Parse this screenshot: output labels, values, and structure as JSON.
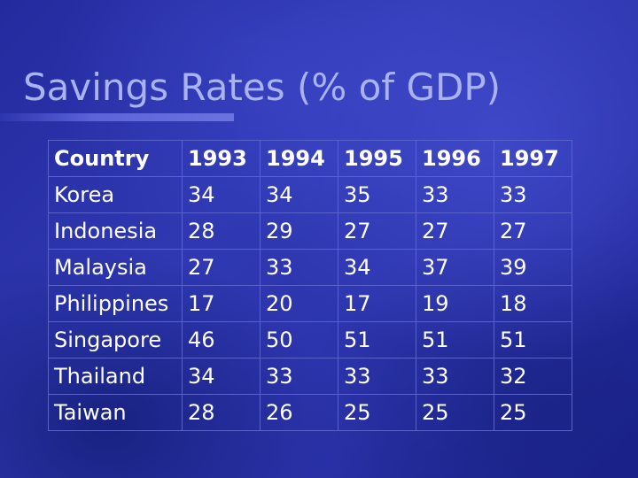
{
  "slide": {
    "title": "Savings Rates (% of GDP)"
  },
  "table": {
    "headers": [
      "Country",
      "1993",
      "1994",
      "1995",
      "1996",
      "1997"
    ],
    "rows": [
      [
        "Korea",
        "34",
        "34",
        "35",
        "33",
        "33"
      ],
      [
        "Indonesia",
        "28",
        "29",
        "27",
        "27",
        "27"
      ],
      [
        "Malaysia",
        "27",
        "33",
        "34",
        "37",
        "39"
      ],
      [
        "Philippines",
        "17",
        "20",
        "17",
        "19",
        "18"
      ],
      [
        "Singapore",
        "46",
        "50",
        "51",
        "51",
        "51"
      ],
      [
        "Thailand",
        "34",
        "33",
        "33",
        "33",
        "32"
      ],
      [
        "Taiwan",
        "28",
        "26",
        "25",
        "25",
        "25"
      ]
    ]
  },
  "colors": {
    "background": "#2a31a8",
    "title": "#a9b3f0",
    "text": "#ffffff",
    "grid": "#5862c8"
  }
}
